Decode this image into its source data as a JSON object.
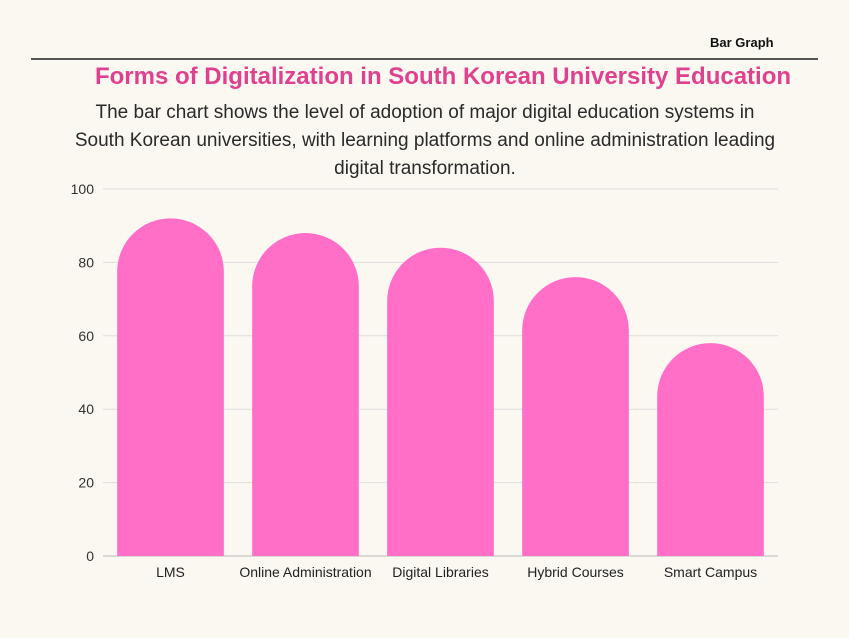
{
  "header": {
    "tag": "Bar Graph",
    "title": "Forms of Digitalization in South Korean University Education",
    "subtitle": "The bar chart shows the level of adoption of major digital education systems in South Korean universities, with learning platforms and online administration leading digital transformation."
  },
  "colors": {
    "bar": "#FF6EC7",
    "title": "#E0418F",
    "grid": "#DDDDDD",
    "axis": "#BBBBBB",
    "background": "#FBF7F1"
  },
  "chart_data": {
    "type": "bar",
    "categories": [
      "LMS",
      "Online Administration",
      "Digital Libraries",
      "Hybrid Courses",
      "Smart Campus"
    ],
    "values": [
      92,
      88,
      84,
      76,
      58
    ],
    "yticks": [
      0,
      20,
      40,
      60,
      80,
      100
    ],
    "ylim": [
      0,
      100
    ],
    "grid": true,
    "xlabel": "",
    "ylabel": ""
  }
}
